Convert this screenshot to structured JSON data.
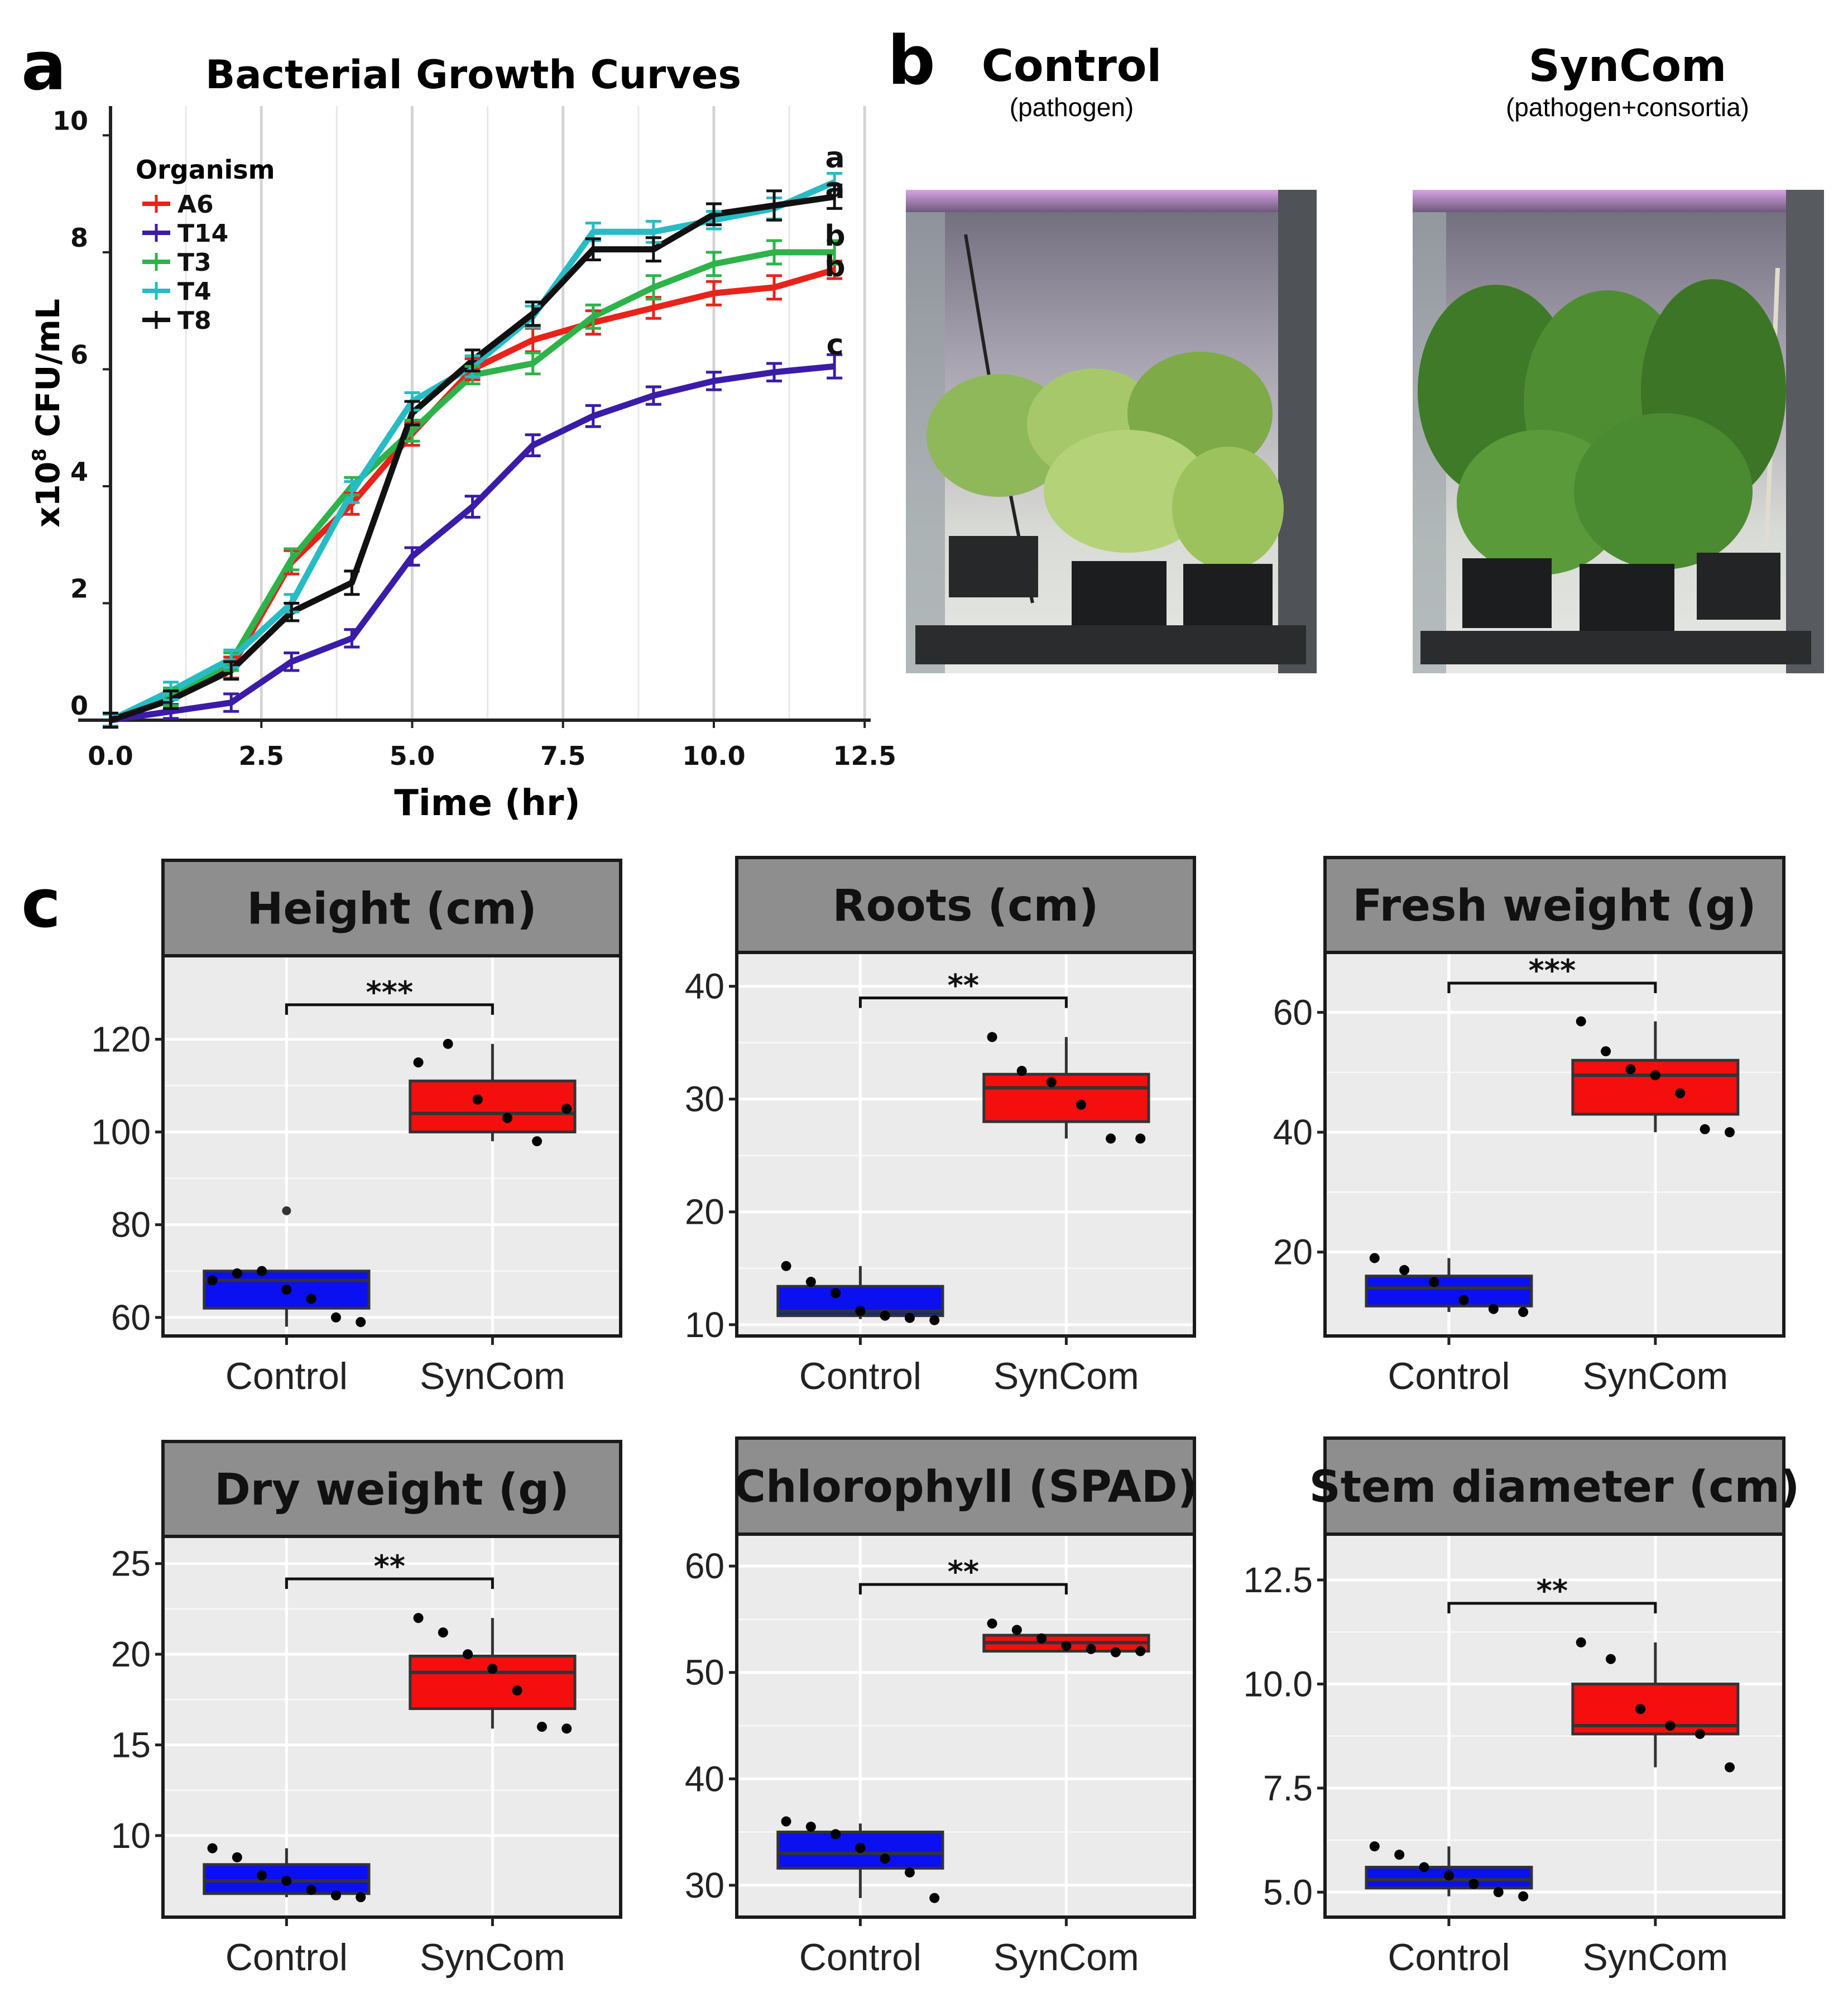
{
  "panel_labels": {
    "a": "a",
    "b": "b",
    "c": "c"
  },
  "growth": {
    "title": "Bacterial Growth Curves",
    "xlabel": "Time (hr)",
    "ylabel_prefix": "x10",
    "ylabel_exp": "8",
    "ylabel_suffix": " CFU/mL",
    "legend_title": "Organism",
    "x_ticks": [
      0,
      2.5,
      5,
      7.5,
      10,
      12.5
    ],
    "x_tick_labels": [
      "0.0",
      "2.5",
      "5.0",
      "7.5",
      "10.0",
      "12.5"
    ],
    "y_ticks": [
      0,
      2,
      4,
      6,
      8,
      10
    ],
    "y_tick_labels": [
      "0",
      "2",
      "4",
      "6",
      "8",
      "10"
    ],
    "sig_letters": [
      "a",
      "a",
      "b",
      "b",
      "c"
    ]
  },
  "photos": {
    "left_title": "Control",
    "left_subtitle": "(pathogen)",
    "right_title": "SynCom",
    "right_subtitle": "(pathogen+consortia)"
  },
  "chart_data": [
    {
      "type": "line",
      "title": "Bacterial Growth Curves",
      "xlabel": "Time (hr)",
      "ylabel": "x10^8 CFU/mL",
      "xlim": [
        0,
        12.6
      ],
      "ylim": [
        0,
        10.5
      ],
      "x": [
        0,
        1,
        2,
        3,
        4,
        5,
        6,
        7,
        8,
        9,
        10,
        11,
        12
      ],
      "series": [
        {
          "name": "A6",
          "color": "#e8231a",
          "values": [
            0,
            0.35,
            0.9,
            2.7,
            3.7,
            4.9,
            6.0,
            6.5,
            6.8,
            7.05,
            7.3,
            7.4,
            7.7
          ],
          "errors": [
            0.12,
            0.15,
            0.18,
            0.2,
            0.18,
            0.2,
            0.18,
            0.2,
            0.2,
            0.18,
            0.2,
            0.2,
            0.15
          ]
        },
        {
          "name": "T14",
          "color": "#3a1ca8",
          "values": [
            0,
            0.15,
            0.3,
            1.0,
            1.4,
            2.8,
            3.65,
            4.7,
            5.2,
            5.55,
            5.8,
            5.95,
            6.05
          ],
          "errors": [
            0.1,
            0.12,
            0.15,
            0.15,
            0.15,
            0.15,
            0.18,
            0.18,
            0.18,
            0.15,
            0.15,
            0.15,
            0.2
          ]
        },
        {
          "name": "T3",
          "color": "#2db34a",
          "values": [
            0,
            0.4,
            1.0,
            2.75,
            4.0,
            4.95,
            5.9,
            6.1,
            6.9,
            7.4,
            7.8,
            8.0,
            8.0
          ],
          "errors": [
            0.1,
            0.15,
            0.15,
            0.18,
            0.15,
            0.18,
            0.15,
            0.18,
            0.2,
            0.2,
            0.2,
            0.2,
            0.2
          ]
        },
        {
          "name": "T4",
          "color": "#27bcc4",
          "values": [
            0,
            0.5,
            1.05,
            2.0,
            3.9,
            5.45,
            6.05,
            6.9,
            8.35,
            8.35,
            8.55,
            8.75,
            9.2
          ],
          "errors": [
            0.1,
            0.15,
            0.15,
            0.15,
            0.18,
            0.15,
            0.18,
            0.18,
            0.15,
            0.18,
            0.15,
            0.18,
            0.15
          ]
        },
        {
          "name": "T8",
          "color": "#111111",
          "values": [
            0,
            0.35,
            0.85,
            1.85,
            2.35,
            5.25,
            6.15,
            6.95,
            8.05,
            8.05,
            8.65,
            8.8,
            8.95
          ],
          "errors": [
            0.12,
            0.15,
            0.15,
            0.15,
            0.2,
            0.2,
            0.18,
            0.2,
            0.18,
            0.2,
            0.18,
            0.25,
            0.2
          ]
        }
      ]
    },
    {
      "type": "box",
      "title": "Height (cm)",
      "categories": [
        "Control",
        "SynCom"
      ],
      "ylim": [
        56,
        138
      ],
      "yticks": [
        60,
        80,
        100,
        120
      ],
      "significance": "***",
      "boxes": [
        {
          "q1": 62,
          "median": 68,
          "q3": 70,
          "whisker_low": 58,
          "whisker_high": 70,
          "outliers": [
            83
          ],
          "points": [
            68,
            69.5,
            70,
            66,
            64,
            60,
            59
          ],
          "fill": "#0a10f0"
        },
        {
          "q1": 100,
          "median": 104,
          "q3": 111,
          "whisker_low": 98,
          "whisker_high": 119,
          "outliers": [],
          "points": [
            115,
            119,
            107,
            103,
            98,
            105
          ],
          "fill": "#f50e0e"
        }
      ]
    },
    {
      "type": "box",
      "title": "Roots (cm)",
      "categories": [
        "Control",
        "SynCom"
      ],
      "ylim": [
        9,
        43
      ],
      "yticks": [
        10,
        20,
        30,
        40
      ],
      "significance": "**",
      "boxes": [
        {
          "q1": 10.8,
          "median": 11.2,
          "q3": 13.4,
          "whisker_low": 10.5,
          "whisker_high": 15.2,
          "outliers": [],
          "points": [
            15.2,
            13.8,
            12.8,
            11.2,
            10.8,
            10.6,
            10.4
          ],
          "fill": "#0a10f0"
        },
        {
          "q1": 28,
          "median": 31,
          "q3": 32.2,
          "whisker_low": 26.5,
          "whisker_high": 35.5,
          "outliers": [],
          "points": [
            35.5,
            32.5,
            31.5,
            29.5,
            26.5,
            26.5
          ],
          "fill": "#f50e0e"
        }
      ]
    },
    {
      "type": "box",
      "title": "Fresh weight (g)",
      "categories": [
        "Control",
        "SynCom"
      ],
      "ylim": [
        6,
        70
      ],
      "yticks": [
        20,
        40,
        60
      ],
      "significance": "***",
      "boxes": [
        {
          "q1": 11,
          "median": 14,
          "q3": 16,
          "whisker_low": 10,
          "whisker_high": 19,
          "outliers": [],
          "points": [
            19,
            17,
            15,
            12,
            10.5,
            10
          ],
          "fill": "#0a10f0"
        },
        {
          "q1": 43,
          "median": 49.5,
          "q3": 52,
          "whisker_low": 40,
          "whisker_high": 58.5,
          "outliers": [],
          "points": [
            58.5,
            53.5,
            50.5,
            49.5,
            46.5,
            40.5,
            40
          ],
          "fill": "#f50e0e"
        }
      ]
    },
    {
      "type": "box",
      "title": "Dry weight (g)",
      "categories": [
        "Control",
        "SynCom"
      ],
      "ylim": [
        5.5,
        26.5
      ],
      "yticks": [
        10,
        15,
        20,
        25
      ],
      "significance": "**",
      "boxes": [
        {
          "q1": 6.8,
          "median": 7.5,
          "q3": 8.4,
          "whisker_low": 6.6,
          "whisker_high": 9.3,
          "outliers": [],
          "points": [
            9.3,
            8.8,
            7.8,
            7.5,
            7.0,
            6.7,
            6.6
          ],
          "fill": "#0a10f0"
        },
        {
          "q1": 17,
          "median": 19,
          "q3": 19.9,
          "whisker_low": 15.9,
          "whisker_high": 22,
          "outliers": [],
          "points": [
            22,
            21.2,
            20,
            19.2,
            18,
            16,
            15.9
          ],
          "fill": "#f50e0e"
        }
      ]
    },
    {
      "type": "box",
      "title": "Chlorophyll (SPAD)",
      "categories": [
        "Control",
        "SynCom"
      ],
      "ylim": [
        27,
        63
      ],
      "yticks": [
        30,
        40,
        50,
        60
      ],
      "significance": "**",
      "boxes": [
        {
          "q1": 31.6,
          "median": 33,
          "q3": 35,
          "whisker_low": 28.8,
          "whisker_high": 35.8,
          "outliers": [],
          "points": [
            36,
            35.5,
            34.8,
            33.5,
            32.5,
            31.2,
            28.8
          ],
          "fill": "#0a10f0"
        },
        {
          "q1": 52,
          "median": 52.8,
          "q3": 53.5,
          "whisker_low": 52,
          "whisker_high": 53.5,
          "outliers": [],
          "points": [
            54.6,
            54,
            53.2,
            52.5,
            52.2,
            51.9,
            52
          ],
          "fill": "#f50e0e"
        }
      ]
    },
    {
      "type": "box",
      "title": "Stem diameter (cm)",
      "categories": [
        "Control",
        "SynCom"
      ],
      "ylim": [
        4.4,
        13.6
      ],
      "yticks": [
        5,
        7.5,
        10,
        12.5
      ],
      "ytick_labels": [
        "5.0",
        "7.5",
        "10.0",
        "12.5"
      ],
      "significance": "**",
      "boxes": [
        {
          "q1": 5.1,
          "median": 5.3,
          "q3": 5.6,
          "whisker_low": 4.9,
          "whisker_high": 6.1,
          "outliers": [],
          "points": [
            6.1,
            5.9,
            5.6,
            5.4,
            5.2,
            5.0,
            4.9
          ],
          "fill": "#0a10f0"
        },
        {
          "q1": 8.8,
          "median": 9.0,
          "q3": 10.0,
          "whisker_low": 8.0,
          "whisker_high": 11.0,
          "outliers": [],
          "points": [
            11.0,
            10.6,
            9.4,
            9.0,
            8.8,
            8.0
          ],
          "fill": "#f50e0e"
        }
      ]
    }
  ]
}
